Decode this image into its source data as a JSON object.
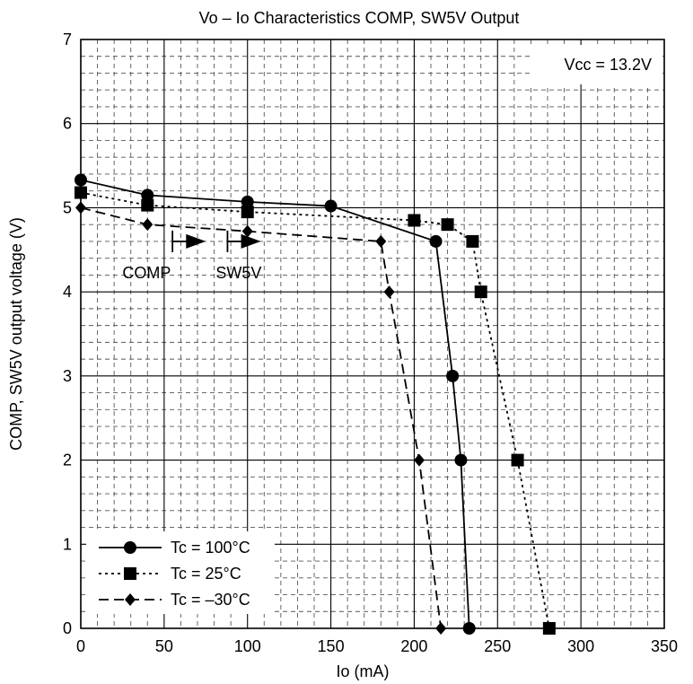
{
  "chart_data": {
    "type": "line",
    "title": "Vo – Io Characteristics   COMP, SW5V Output",
    "xlabel": "Io  (mA)",
    "ylabel": "COMP, SW5V output voltage  (V)",
    "xlim": [
      0,
      350
    ],
    "ylim": [
      0,
      7
    ],
    "xticks": [
      0,
      50,
      100,
      150,
      200,
      250,
      300,
      350
    ],
    "yticks": [
      0,
      1,
      2,
      3,
      4,
      5,
      6,
      7
    ],
    "grid": true,
    "annotation": "Vcc = 13.2V",
    "comp_label": "COMP",
    "sw5v_label": "SW5V",
    "series": [
      {
        "name": "Tc = 100°C",
        "marker": "circle",
        "line_style": "solid",
        "x": [
          0,
          40,
          100,
          150,
          213,
          223,
          228,
          233
        ],
        "y": [
          5.33,
          5.15,
          5.07,
          5.02,
          4.6,
          3.0,
          2.0,
          0.0
        ]
      },
      {
        "name": "Tc = 25°C",
        "marker": "square",
        "line_style": "dotted",
        "x": [
          0,
          40,
          100,
          200,
          220,
          235,
          240,
          262,
          281
        ],
        "y": [
          5.18,
          5.03,
          4.95,
          4.85,
          4.8,
          4.6,
          4.0,
          2.0,
          0.0
        ]
      },
      {
        "name": "Tc = –30°C",
        "marker": "diamond",
        "line_style": "dashed",
        "x": [
          0,
          40,
          100,
          180,
          185,
          203,
          216
        ],
        "y": [
          5.0,
          4.8,
          4.72,
          4.6,
          4.0,
          2.0,
          0.0
        ]
      }
    ],
    "legend_position": "bottom-left"
  }
}
